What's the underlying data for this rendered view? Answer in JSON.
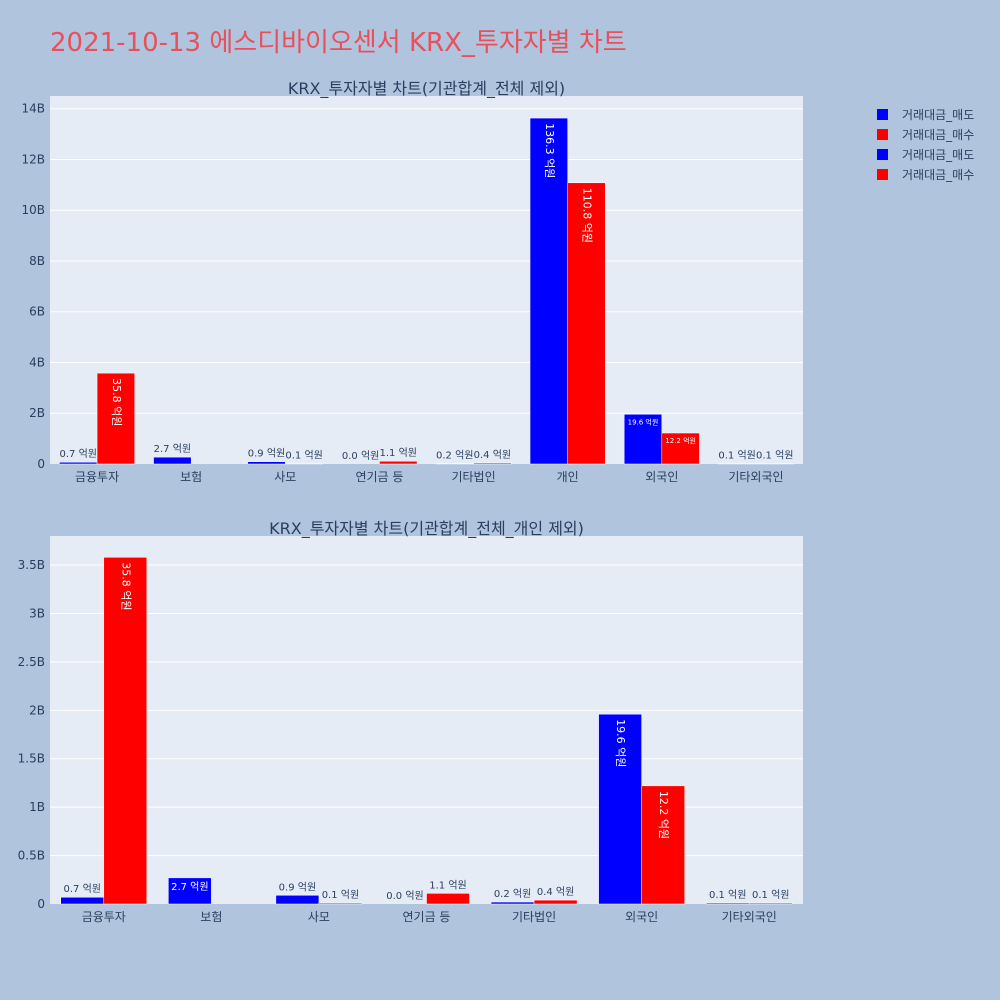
{
  "title": "2021-10-13 에스디바이오센서 KRX_투자자별 차트",
  "colors": {
    "sell": "#0000ff",
    "buy": "#ff0000",
    "plot_bg": "#e5ecf6",
    "page_bg": "#b0c4de",
    "title": "#e8505b"
  },
  "legend": [
    {
      "label": "거래대금_매도",
      "color": "#0000ff"
    },
    {
      "label": "거래대금_매수",
      "color": "#ff0000"
    },
    {
      "label": "거래대금_매도",
      "color": "#0000ff"
    },
    {
      "label": "거래대금_매수",
      "color": "#ff0000"
    }
  ],
  "chart_data": [
    {
      "type": "bar",
      "title": "KRX_투자자별 차트(기관합계_전체 제외)",
      "categories": [
        "금융투자",
        "보험",
        "사모",
        "연기금 등",
        "기타법인",
        "개인",
        "외국인",
        "기타외국인"
      ],
      "series": [
        {
          "name": "거래대금_매도",
          "values": [
            0.07,
            0.27,
            0.09,
            0.0,
            0.02,
            13.63,
            1.96,
            0.01
          ],
          "labels": [
            "0.7 억원",
            "2.7 억원",
            "0.9 억원",
            "0.0 억원",
            "0.2 억원",
            "136.3 억원",
            "19.6 억원",
            "0.1 억원"
          ]
        },
        {
          "name": "거래대금_매수",
          "values": [
            3.58,
            0.0,
            0.01,
            0.11,
            0.04,
            11.08,
            1.22,
            0.01
          ],
          "labels": [
            "35.8 억원",
            "",
            "0.1 억원",
            "1.1 억원",
            "0.4 억원",
            "110.8 억원",
            "12.2 억원",
            "0.1 억원"
          ]
        }
      ],
      "ylim": [
        0,
        14.5
      ],
      "yticks": [
        0,
        2,
        4,
        6,
        8,
        10,
        12,
        14
      ],
      "ytick_labels": [
        "0",
        "2B",
        "4B",
        "6B",
        "8B",
        "10B",
        "12B",
        "14B"
      ],
      "grid": true
    },
    {
      "type": "bar",
      "title": "KRX_투자자별 차트(기관합계_전체_개인 제외)",
      "categories": [
        "금융투자",
        "보험",
        "사모",
        "연기금 등",
        "기타법인",
        "외국인",
        "기타외국인"
      ],
      "series": [
        {
          "name": "거래대금_매도",
          "values": [
            0.07,
            0.27,
            0.09,
            0.0,
            0.02,
            1.96,
            0.01
          ],
          "labels": [
            "0.7 억원",
            "2.7 억원",
            "0.9 억원",
            "0.0 억원",
            "0.2 억원",
            "19.6 억원",
            "0.1 억원"
          ]
        },
        {
          "name": "거래대금_매수",
          "values": [
            3.58,
            0.0,
            0.01,
            0.11,
            0.04,
            1.22,
            0.01
          ],
          "labels": [
            "35.8 억원",
            "",
            "0.1 억원",
            "1.1 억원",
            "0.4 억원",
            "12.2 억원",
            "0.1 억원"
          ]
        }
      ],
      "ylim": [
        0,
        3.8
      ],
      "yticks": [
        0,
        0.5,
        1,
        1.5,
        2,
        2.5,
        3,
        3.5
      ],
      "ytick_labels": [
        "0",
        "0.5B",
        "1B",
        "1.5B",
        "2B",
        "2.5B",
        "3B",
        "3.5B"
      ],
      "grid": true
    }
  ]
}
